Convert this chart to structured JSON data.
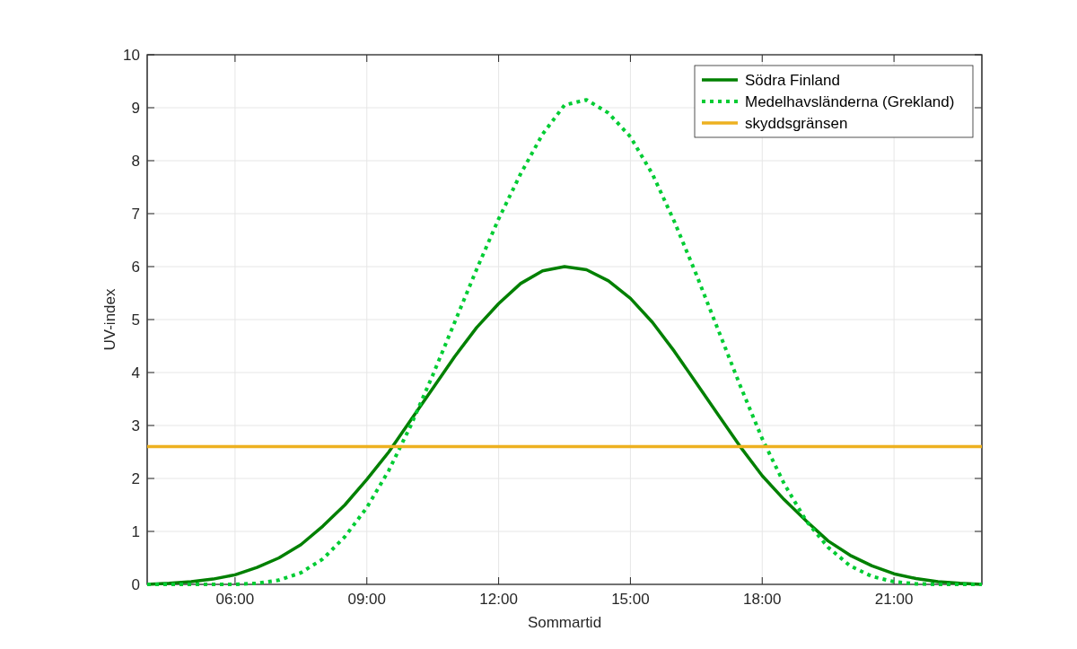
{
  "chart_data": {
    "type": "line",
    "xlabel": "Sommartid",
    "ylabel": "UV-index",
    "x": [
      4,
      4.5,
      5,
      5.5,
      6,
      6.5,
      7,
      7.5,
      8,
      8.5,
      9,
      9.5,
      10,
      10.5,
      11,
      11.5,
      12,
      12.5,
      13,
      13.5,
      14,
      14.5,
      15,
      15.5,
      16,
      16.5,
      17,
      17.5,
      18,
      18.5,
      19,
      19.5,
      20,
      20.5,
      21,
      21.5,
      22,
      22.5,
      23
    ],
    "series": [
      {
        "name": "Södra Finland",
        "color": "#008000",
        "line_style": "solid",
        "values": [
          0,
          0.02,
          0.05,
          0.1,
          0.18,
          0.32,
          0.5,
          0.75,
          1.1,
          1.5,
          1.98,
          2.5,
          3.1,
          3.7,
          4.3,
          4.85,
          5.3,
          5.68,
          5.92,
          6.0,
          5.94,
          5.73,
          5.4,
          4.95,
          4.4,
          3.8,
          3.2,
          2.6,
          2.05,
          1.6,
          1.2,
          0.82,
          0.55,
          0.35,
          0.2,
          0.11,
          0.05,
          0.02,
          0
        ]
      },
      {
        "name": "Medelhavsländerna (Grekland)",
        "color": "#00cc33",
        "line_style": "dotted",
        "values": [
          0,
          0,
          0,
          0,
          0,
          0.02,
          0.08,
          0.22,
          0.48,
          0.9,
          1.45,
          2.15,
          3.0,
          3.95,
          4.95,
          5.95,
          6.9,
          7.75,
          8.5,
          9.05,
          9.15,
          8.9,
          8.45,
          7.75,
          6.85,
          5.85,
          4.8,
          3.75,
          2.75,
          1.9,
          1.2,
          0.7,
          0.35,
          0.15,
          0.05,
          0.01,
          0,
          0,
          0
        ]
      },
      {
        "name": "skyddsgränsen",
        "color": "#edb120",
        "line_style": "solid",
        "x": [
          4,
          23
        ],
        "values": [
          2.6,
          2.6
        ]
      }
    ],
    "xlim": [
      4,
      23
    ],
    "xticks": [
      {
        "value": 6,
        "label": "06:00"
      },
      {
        "value": 9,
        "label": "09:00"
      },
      {
        "value": 12,
        "label": "12:00"
      },
      {
        "value": 15,
        "label": "15:00"
      },
      {
        "value": 18,
        "label": "18:00"
      },
      {
        "value": 21,
        "label": "21:00"
      }
    ],
    "ylim": [
      0,
      10
    ],
    "yticks": [
      0,
      1,
      2,
      3,
      4,
      5,
      6,
      7,
      8,
      9,
      10
    ],
    "grid": true,
    "legend": "top right"
  }
}
